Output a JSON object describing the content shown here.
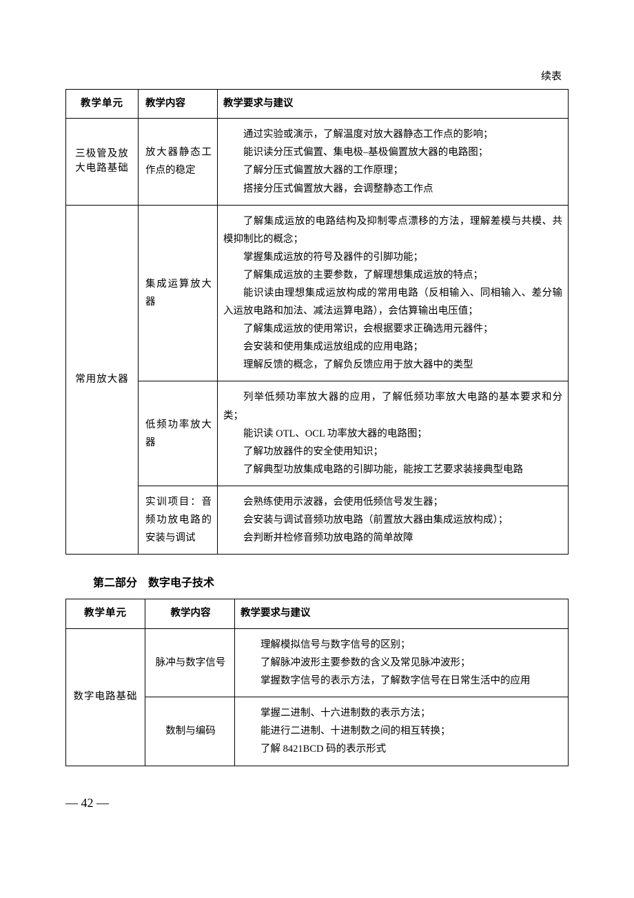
{
  "continued_label": "续表",
  "table1": {
    "headers": {
      "unit": "教学单元",
      "content": "教学内容",
      "req": "教学要求与建议"
    },
    "rows": [
      {
        "unit": "三极管及放大电路基础",
        "content": "放大器静态工作点的稳定",
        "req": [
          "通过实验或演示，了解温度对放大器静态工作点的影响；",
          "能识读分压式偏置、集电极–基极偏置放大器的电路图；",
          "了解分压式偏置放大器的工作原理；",
          "搭接分压式偏置放大器，会调整静态工作点"
        ]
      },
      {
        "unit": "常用放大器",
        "unit_rowspan": 3,
        "content": "集成运算放大器",
        "req": [
          "了解集成运放的电路结构及抑制零点漂移的方法，理解差模与共模、共模抑制比的概念；",
          "掌握集成运放的符号及器件的引脚功能；",
          "了解集成运放的主要参数，了解理想集成运放的特点；",
          "能识读由理想集成运放构成的常用电路（反相输入、同相输入、差分输入运放电路和加法、减法运算电路），会估算输出电压值；",
          "了解集成运放的使用常识，会根据要求正确选用元器件；",
          "会安装和使用集成运放组成的应用电路；",
          "理解反馈的概念，了解负反馈应用于放大器中的类型"
        ]
      },
      {
        "content": "低频功率放大器",
        "req": [
          "列举低频功率放大器的应用，了解低频功率放大电路的基本要求和分类；",
          "能识读 OTL、OCL 功率放大器的电路图；",
          "了解功放器件的安全使用知识；",
          "了解典型功放集成电路的引脚功能，能按工艺要求装接典型电路"
        ]
      },
      {
        "content": "实训项目：音频功放电路的安装与调试",
        "req": [
          "会熟练使用示波器，会使用低频信号发生器；",
          "会安装与调试音频功放电路（前置放大器由集成运放构成）；",
          "会判断并检修音频功放电路的简单故障"
        ]
      }
    ]
  },
  "section2_heading": "第二部分　数字电子技术",
  "table2": {
    "headers": {
      "unit": "教学单元",
      "content": "教学内容",
      "req": "教学要求与建议"
    },
    "rows": [
      {
        "unit": "数字电路基础",
        "unit_rowspan": 2,
        "content": "脉冲与数字信号",
        "req": [
          "理解模拟信号与数字信号的区别；",
          "了解脉冲波形主要参数的含义及常见脉冲波形；",
          "掌握数字信号的表示方法，了解数字信号在日常生活中的应用"
        ]
      },
      {
        "content": "数制与编码",
        "req": [
          "掌握二进制、十六进制数的表示方法；",
          "能进行二进制、十进制数之间的相互转换；",
          "了解 8421BCD 码的表示形式"
        ]
      }
    ]
  },
  "page_number": "— 42 —"
}
